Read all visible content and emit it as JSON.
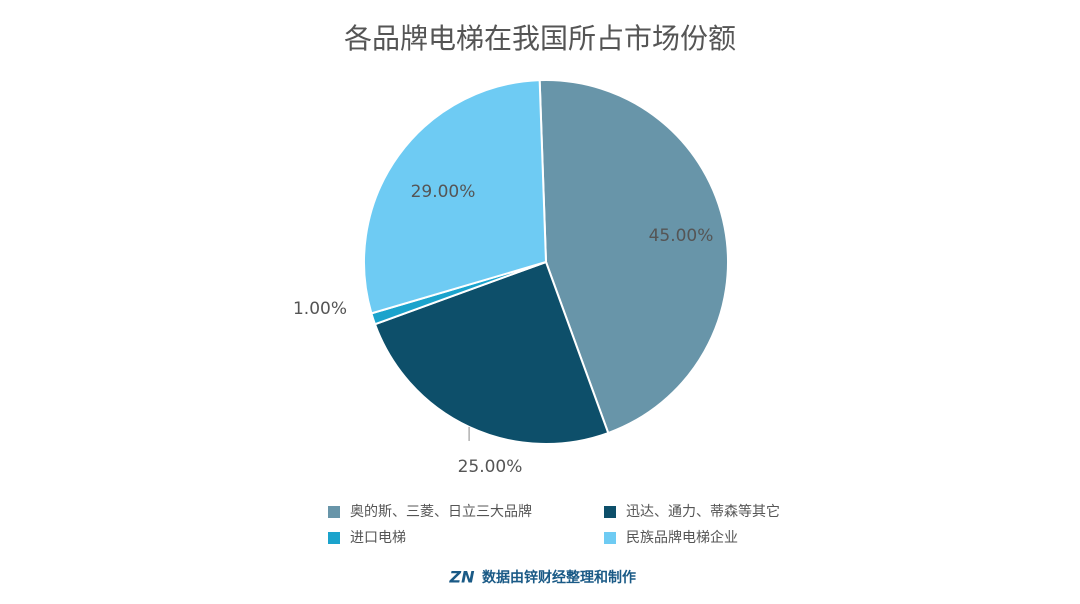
{
  "chart_data": {
    "type": "pie",
    "title": "各品牌电梯在我国所占市场份额",
    "categories": [
      "奥的斯、三菱、日立三大品牌",
      "迅达、通力、蒂森等其它",
      "进口电梯",
      "民族品牌电梯企业"
    ],
    "values": [
      45,
      25,
      1,
      29
    ],
    "value_labels": [
      "45.00%",
      "25.00%",
      "1.00%",
      "29.00%"
    ],
    "colors": [
      "#6895a9",
      "#0d4f6a",
      "#1ba3cc",
      "#6ecbf3"
    ]
  },
  "footer": {
    "logo": "ZN",
    "text": "数据由锌财经整理和制作"
  }
}
